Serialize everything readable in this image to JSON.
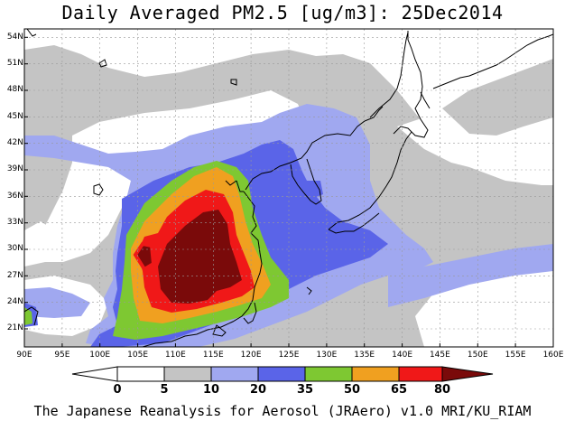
{
  "title": "Daily Averaged PM2.5 [ug/m3]: 25Dec2014",
  "footer": "The Japanese Reanalysis for Aerosol (JRAero) v1.0 MRI/KU_RIAM",
  "map": {
    "lon_range": [
      90,
      160
    ],
    "lat_range": [
      19.5,
      55.5
    ],
    "lat_labels": [
      "54N",
      "51N",
      "48N",
      "45N",
      "42N",
      "39N",
      "36N",
      "33N",
      "30N",
      "27N",
      "24N",
      "21N"
    ],
    "lon_labels": [
      "90E",
      "95E",
      "100E",
      "105E",
      "110E",
      "115E",
      "120E",
      "125E",
      "130E",
      "135E",
      "140E",
      "145E",
      "150E",
      "155E",
      "160E"
    ]
  },
  "colorbar": {
    "levels": [
      "0",
      "5",
      "10",
      "20",
      "35",
      "50",
      "65",
      "80"
    ],
    "colors": {
      "lt0": "#ffffff",
      "c0_5": "#ffffff",
      "c5_10": "#c4c4c4",
      "c10_20": "#a0a8f0",
      "c20_35": "#5a64e8",
      "c35_50": "#7ec832",
      "c50_65": "#f0a020",
      "c65_80": "#f01818",
      "gt80": "#7a0a0a"
    }
  }
}
